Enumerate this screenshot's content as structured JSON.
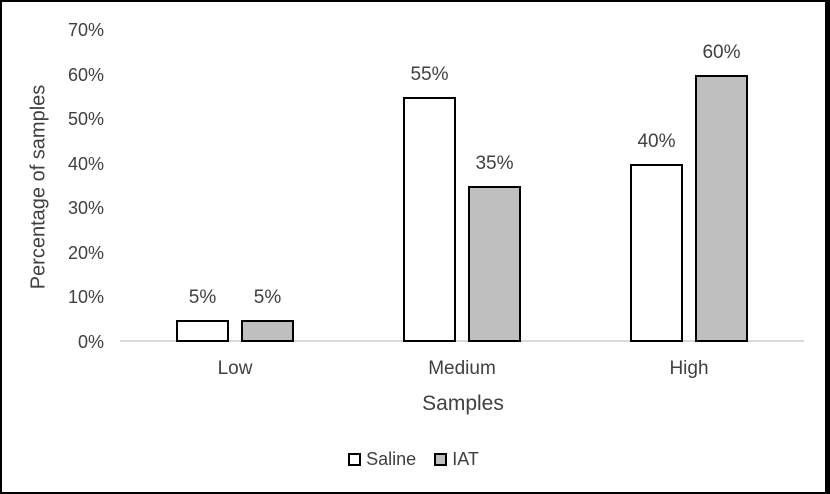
{
  "chart_data": {
    "type": "bar",
    "title": "",
    "categories": [
      "Low",
      "Medium",
      "High"
    ],
    "series": [
      {
        "name": "Saline",
        "fill": "#FFFFFF",
        "values": [
          5,
          55,
          40
        ],
        "labels": [
          "5%",
          "55%",
          "40%"
        ]
      },
      {
        "name": "IAT",
        "fill": "#BFBFBF",
        "values": [
          5,
          35,
          60
        ],
        "labels": [
          "5%",
          "35%",
          "60%"
        ]
      }
    ],
    "xlabel": "Samples",
    "ylabel": "Percentage of samples",
    "ylim": [
      0,
      70
    ],
    "ytick_step": 10,
    "ytick_labels": [
      "0%",
      "10%",
      "20%",
      "30%",
      "40%",
      "50%",
      "60%",
      "70%"
    ],
    "grid": false,
    "legend_position": "bottom"
  },
  "colors": {
    "text": "#404040",
    "axis_line": "#D9D9D9",
    "bar_border": "#000000",
    "frame_border": "#000000",
    "background": "#FFFFFF"
  }
}
